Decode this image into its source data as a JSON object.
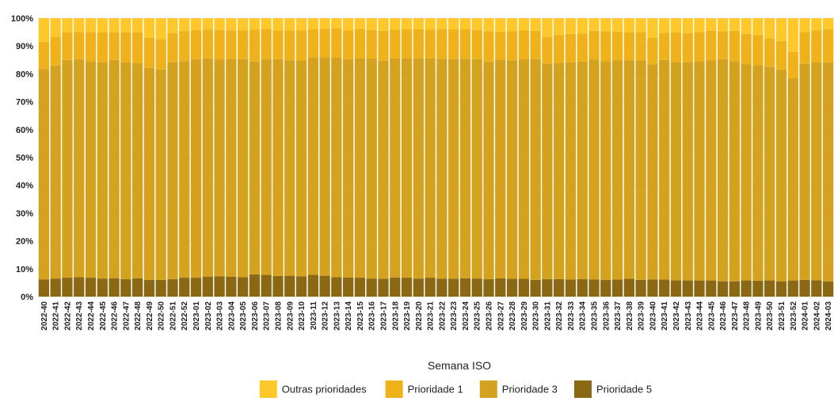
{
  "chart_data": {
    "type": "bar",
    "stacked": true,
    "percent": true,
    "xlabel": "Semana ISO",
    "ylabel": "",
    "ylim": [
      0,
      100
    ],
    "y_ticks": [
      "0%",
      "10%",
      "20%",
      "30%",
      "40%",
      "50%",
      "60%",
      "70%",
      "80%",
      "90%",
      "100%"
    ],
    "grid": true,
    "legend_position": "bottom",
    "categories": [
      "2022-40",
      "2022-41",
      "2022-42",
      "2022-43",
      "2022-44",
      "2022-45",
      "2022-46",
      "2022-47",
      "2022-48",
      "2022-49",
      "2022-50",
      "2022-51",
      "2022-52",
      "2023-01",
      "2023-02",
      "2023-03",
      "2023-04",
      "2023-05",
      "2023-06",
      "2023-07",
      "2023-08",
      "2023-09",
      "2023-10",
      "2023-11",
      "2023-12",
      "2023-13",
      "2023-14",
      "2023-15",
      "2023-16",
      "2023-17",
      "2023-18",
      "2023-19",
      "2023-20",
      "2023-21",
      "2023-22",
      "2023-23",
      "2023-24",
      "2023-25",
      "2023-26",
      "2023-27",
      "2023-28",
      "2023-29",
      "2023-30",
      "2023-31",
      "2023-32",
      "2023-33",
      "2023-34",
      "2023-35",
      "2023-36",
      "2023-37",
      "2023-38",
      "2023-39",
      "2023-40",
      "2023-41",
      "2023-42",
      "2023-43",
      "2023-44",
      "2023-45",
      "2023-46",
      "2023-47",
      "2023-48",
      "2023-49",
      "2023-50",
      "2023-51",
      "2023-52",
      "2024-01",
      "2024-02",
      "2024-03"
    ],
    "series": [
      {
        "name": "Prioridade 5",
        "color": "#8b6914",
        "values": [
          6.2,
          6.5,
          6.8,
          7.0,
          6.8,
          6.5,
          6.6,
          6.3,
          6.6,
          6.0,
          6.0,
          6.3,
          6.8,
          6.8,
          7.2,
          7.3,
          7.2,
          7.0,
          8.0,
          7.8,
          7.4,
          7.5,
          7.3,
          7.8,
          7.5,
          7.0,
          6.9,
          6.8,
          6.5,
          6.4,
          6.9,
          6.8,
          6.5,
          6.8,
          6.5,
          6.4,
          6.6,
          6.5,
          6.3,
          6.6,
          6.4,
          6.4,
          6.0,
          6.3,
          6.3,
          6.1,
          6.3,
          6.2,
          6.0,
          6.1,
          6.4,
          6.0,
          6.1,
          6.1,
          5.9,
          5.8,
          5.8,
          5.8,
          5.5,
          5.5,
          5.8,
          5.7,
          5.8,
          5.5,
          5.8,
          6.0,
          5.9,
          5.5
        ]
      },
      {
        "name": "Prioridade 3",
        "color": "#d4a21e",
        "values": [
          75.5,
          76.5,
          78.2,
          78.3,
          77.7,
          77.7,
          78.4,
          77.9,
          77.2,
          76.2,
          75.6,
          77.8,
          77.8,
          78.5,
          78.4,
          77.9,
          78.2,
          78.3,
          76.4,
          77.4,
          77.9,
          77.4,
          77.5,
          78.2,
          78.5,
          78.8,
          78.4,
          78.9,
          79.0,
          78.3,
          78.6,
          78.9,
          79.1,
          78.9,
          78.9,
          78.9,
          78.8,
          78.8,
          78.1,
          78.5,
          78.5,
          78.8,
          79.3,
          77.4,
          77.5,
          78.1,
          78.1,
          79.0,
          78.5,
          78.7,
          78.5,
          78.8,
          77.3,
          78.9,
          78.4,
          78.3,
          78.7,
          79.0,
          79.8,
          79.0,
          77.7,
          77.4,
          76.7,
          76.1,
          72.6,
          77.6,
          78.3,
          78.7
        ]
      },
      {
        "name": "Prioridade 1",
        "color": "#f0b21b",
        "values": [
          9.8,
          10.3,
          9.9,
          9.8,
          10.6,
          10.7,
          10.0,
          10.7,
          11.1,
          10.8,
          10.9,
          10.6,
          10.7,
          10.5,
          10.4,
          10.6,
          10.3,
          10.4,
          11.5,
          11.0,
          10.3,
          10.7,
          10.8,
          10.0,
          10.2,
          10.5,
          10.3,
          10.5,
          10.3,
          10.8,
          10.4,
          10.3,
          10.5,
          10.2,
          10.6,
          10.7,
          10.6,
          10.5,
          11.0,
          10.1,
          10.4,
          10.4,
          10.2,
          9.6,
          10.2,
          10.2,
          10.1,
          10.3,
          10.8,
          10.4,
          10.1,
          10.3,
          9.6,
          9.8,
          10.6,
          10.5,
          10.6,
          10.7,
          10.0,
          11.0,
          10.9,
          10.9,
          10.3,
          10.2,
          9.4,
          11.5,
          11.5,
          11.8
        ]
      },
      {
        "name": "Outras prioridades",
        "color": "#ffc82a",
        "values": [
          8.5,
          6.7,
          5.1,
          4.9,
          4.9,
          5.1,
          5.0,
          5.1,
          5.1,
          7.0,
          7.5,
          5.3,
          4.7,
          4.2,
          4.0,
          4.2,
          4.3,
          4.3,
          4.1,
          3.8,
          4.4,
          4.4,
          4.4,
          4.0,
          3.8,
          3.7,
          4.4,
          3.8,
          4.2,
          4.5,
          4.1,
          4.0,
          3.9,
          4.1,
          4.0,
          4.0,
          4.0,
          4.2,
          4.6,
          4.8,
          4.7,
          4.4,
          4.5,
          6.7,
          6.0,
          5.6,
          5.5,
          4.5,
          4.7,
          4.8,
          5.0,
          4.9,
          7.0,
          5.2,
          5.1,
          5.4,
          4.9,
          4.5,
          4.7,
          4.5,
          5.6,
          6.0,
          7.2,
          8.2,
          12.2,
          4.9,
          4.3,
          4.0
        ]
      }
    ],
    "legend_order": [
      "Outras prioridades",
      "Prioridade 1",
      "Prioridade 3",
      "Prioridade 5"
    ]
  }
}
